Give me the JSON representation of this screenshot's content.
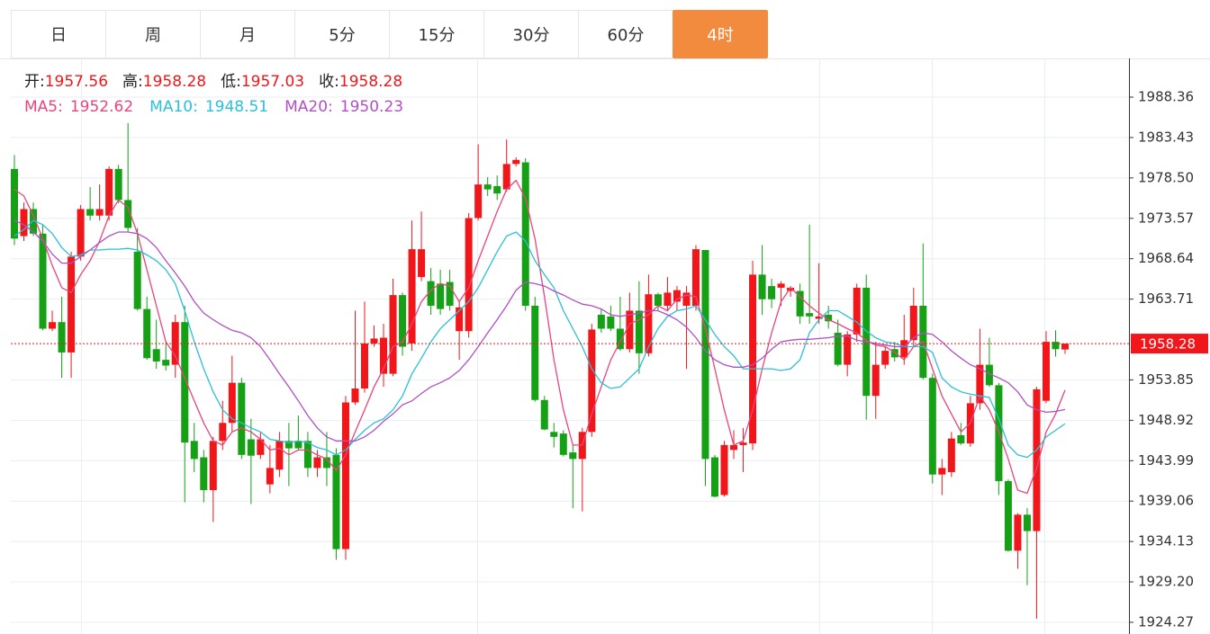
{
  "tabs": {
    "items": [
      "日",
      "周",
      "月",
      "5分",
      "15分",
      "30分",
      "60分",
      "4时"
    ],
    "active": 7
  },
  "chart_data": {
    "type": "candlestick",
    "ohlc_labels": [
      "开:",
      "高:",
      "低:",
      "收:"
    ],
    "up_color": "#f0161a",
    "down_color": "#15a015",
    "open": [
      1979.6,
      1971.4,
      1974.7,
      1971.7,
      1960.1,
      1960.9,
      1957.2,
      1968.9,
      1974.7,
      1973.9,
      1973.9,
      1979.6,
      1975.8,
      1969.5,
      1962.5,
      1957.6,
      1956.3,
      1955.7,
      1960.9,
      1946.4,
      1944.4,
      1940.4,
      1946.4,
      1948.6,
      1953.5,
      1946.6,
      1944.7,
      1941.1,
      1942.9,
      1946.4,
      1946.4,
      1946.4,
      1943.1,
      1944.4,
      1944.7,
      1933.2,
      1951.1,
      1952.8,
      1958.3,
      1954.6,
      1954.6,
      1964.2,
      1958.3,
      1966.4,
      1965.9,
      1965.6,
      1965.8,
      1959.8,
      1959.8,
      1973.6,
      1977.7,
      1977.5,
      1977.1,
      1980.2,
      1980.4,
      1962.9,
      1951.4,
      1947.5,
      1947.3,
      1945.0,
      1944.2,
      1947.5,
      1961.8,
      1961.6,
      1960.1,
      1957.6,
      1962.3,
      1957.1,
      1964.3,
      1962.9,
      1963.4,
      1962.9,
      1962.9,
      1969.7,
      1944.4,
      1939.8,
      1945.3,
      1945.9,
      1946.1,
      1966.7,
      1965.3,
      1965.1,
      1964.7,
      1964.7,
      1962.0,
      1961.3,
      1961.8,
      1959.6,
      1955.7,
      1959.4,
      1965.1,
      1951.9,
      1955.7,
      1957.6,
      1956.6,
      1958.7,
      1962.9,
      1954.1,
      1942.3,
      1942.6,
      1947.1,
      1946.1,
      1951.0,
      1955.7,
      1953.2,
      1941.5,
      1933.0,
      1937.4,
      1935.4,
      1951.3,
      1958.5,
      1957.56
    ],
    "high": [
      1981.3,
      1975.5,
      1975.5,
      1972.8,
      1962.3,
      1964.0,
      1969.5,
      1975.2,
      1977.4,
      1977.7,
      1979.9,
      1980.1,
      1985.2,
      1972.4,
      1964.0,
      1961.2,
      1958.5,
      1961.8,
      1962.9,
      1948.6,
      1945.3,
      1946.9,
      1951.3,
      1956.8,
      1954.1,
      1949.1,
      1947.5,
      1945.9,
      1947.5,
      1948.6,
      1949.5,
      1947.5,
      1945.3,
      1947.5,
      1945.5,
      1951.9,
      1962.3,
      1963.4,
      1960.5,
      1960.7,
      1966.2,
      1964.5,
      1973.3,
      1974.4,
      1967.5,
      1967.3,
      1967.3,
      1963.4,
      1974.2,
      1982.6,
      1978.6,
      1978.8,
      1983.2,
      1981.0,
      1980.9,
      1964.0,
      1951.9,
      1948.6,
      1947.7,
      1945.9,
      1948.0,
      1960.7,
      1962.5,
      1962.9,
      1964.0,
      1964.5,
      1965.9,
      1966.7,
      1964.5,
      1966.4,
      1965.3,
      1965.3,
      1970.3,
      1969.7,
      1944.7,
      1946.4,
      1947.7,
      1948.0,
      1968.4,
      1970.3,
      1966.2,
      1965.9,
      1965.3,
      1965.6,
      1972.8,
      1968.1,
      1962.9,
      1961.2,
      1959.8,
      1965.6,
      1966.7,
      1958.5,
      1957.9,
      1958.5,
      1961.8,
      1965.1,
      1970.5,
      1954.6,
      1944.2,
      1947.5,
      1948.6,
      1951.9,
      1960.1,
      1959.0,
      1953.5,
      1941.7,
      1937.6,
      1938.2,
      1953.0,
      1959.8,
      1959.9,
      1958.28
    ],
    "low": [
      1970.3,
      1970.8,
      1971.4,
      1959.9,
      1959.8,
      1954.1,
      1954.1,
      1968.4,
      1973.3,
      1973.3,
      1973.3,
      1975.4,
      1971.9,
      1962.3,
      1956.3,
      1955.2,
      1955.0,
      1954.1,
      1938.9,
      1942.6,
      1938.9,
      1936.5,
      1945.3,
      1947.5,
      1944.2,
      1938.7,
      1944.2,
      1940.0,
      1942.0,
      1940.9,
      1945.3,
      1942.0,
      1942.0,
      1940.9,
      1931.9,
      1931.9,
      1950.8,
      1952.3,
      1957.9,
      1953.0,
      1954.3,
      1956.8,
      1957.4,
      1965.9,
      1961.8,
      1961.8,
      1962.3,
      1956.3,
      1959.0,
      1973.3,
      1976.3,
      1975.8,
      1976.8,
      1979.9,
      1962.3,
      1951.2,
      1947.7,
      1945.6,
      1944.5,
      1938.2,
      1937.8,
      1946.9,
      1959.6,
      1959.8,
      1957.4,
      1957.2,
      1954.6,
      1956.7,
      1962.3,
      1962.3,
      1962.3,
      1955.2,
      1962.3,
      1940.9,
      1939.5,
      1939.6,
      1944.2,
      1942.6,
      1945.3,
      1961.8,
      1962.6,
      1962.9,
      1964.0,
      1960.7,
      1960.7,
      1960.7,
      1960.1,
      1955.5,
      1954.3,
      1958.5,
      1949.0,
      1949.1,
      1955.2,
      1956.1,
      1955.7,
      1957.9,
      1953.9,
      1941.2,
      1939.8,
      1942.0,
      1945.9,
      1945.7,
      1950.2,
      1953.0,
      1939.8,
      1932.9,
      1930.8,
      1928.8,
      1924.7,
      1951.0,
      1956.7,
      1957.03
    ],
    "close": [
      1971.1,
      1974.7,
      1971.7,
      1960.1,
      1960.9,
      1957.2,
      1968.9,
      1974.7,
      1973.9,
      1974.7,
      1979.6,
      1975.8,
      1972.4,
      1962.5,
      1956.5,
      1956.1,
      1955.6,
      1960.9,
      1946.2,
      1944.2,
      1940.4,
      1946.4,
      1948.6,
      1953.5,
      1944.7,
      1944.6,
      1946.6,
      1943.1,
      1946.4,
      1945.5,
      1945.5,
      1943.1,
      1944.4,
      1943.1,
      1933.2,
      1951.1,
      1952.8,
      1958.3,
      1958.9,
      1959.0,
      1964.2,
      1957.9,
      1969.8,
      1969.8,
      1962.9,
      1962.5,
      1962.9,
      1962.7,
      1973.6,
      1977.7,
      1977.1,
      1976.6,
      1980.2,
      1980.7,
      1962.9,
      1951.4,
      1947.8,
      1946.9,
      1944.7,
      1944.2,
      1947.5,
      1960.0,
      1960.1,
      1960.1,
      1957.6,
      1962.3,
      1957.1,
      1964.3,
      1962.9,
      1964.5,
      1964.8,
      1964.5,
      1969.8,
      1944.2,
      1939.6,
      1945.9,
      1945.9,
      1946.2,
      1966.7,
      1963.7,
      1963.7,
      1965.6,
      1965.1,
      1961.6,
      1961.6,
      1961.6,
      1961.0,
      1955.7,
      1959.4,
      1965.1,
      1951.9,
      1955.7,
      1957.4,
      1956.6,
      1958.7,
      1962.9,
      1954.1,
      1942.3,
      1943.1,
      1946.7,
      1946.1,
      1951.0,
      1955.7,
      1953.2,
      1941.5,
      1933.0,
      1937.4,
      1935.4,
      1952.7,
      1958.5,
      1957.6,
      1958.28
    ],
    "series": [
      {
        "name": "MA5:",
        "color": "#e8457c",
        "values": [
          1977.1,
          1976.3,
          1973.9,
          1971.1,
          1967.8,
          1965.1,
          1964.5,
          1966.7,
          1968.4,
          1970.8,
          1973.9,
          1975.8,
          1974.9,
          1971.7,
          1967.3,
          1962.9,
          1958.5,
          1956.8,
          1954.1,
          1951.3,
          1948.6,
          1946.4,
          1945.9,
          1947.5,
          1948.0,
          1947.5,
          1946.6,
          1945.3,
          1945.5,
          1944.7,
          1945.3,
          1945.3,
          1944.7,
          1944.2,
          1942.8,
          1944.7,
          1947.5,
          1950.2,
          1953.0,
          1955.2,
          1957.9,
          1958.5,
          1960.7,
          1963.4,
          1964.8,
          1965.6,
          1965.3,
          1963.4,
          1965.1,
          1968.4,
          1971.4,
          1974.4,
          1977.1,
          1978.2,
          1976.0,
          1971.1,
          1964.0,
          1956.3,
          1950.2,
          1945.9,
          1945.9,
          1949.7,
          1953.0,
          1956.3,
          1958.5,
          1960.7,
          1961.2,
          1961.8,
          1962.9,
          1962.3,
          1963.7,
          1964.2,
          1964.0,
          1960.1,
          1955.2,
          1950.2,
          1945.9,
          1946.4,
          1950.2,
          1955.2,
          1959.6,
          1963.4,
          1965.1,
          1964.0,
          1962.9,
          1962.0,
          1961.2,
          1960.7,
          1960.1,
          1959.6,
          1958.7,
          1958.1,
          1957.9,
          1957.2,
          1956.3,
          1957.9,
          1958.5,
          1955.2,
          1951.9,
          1949.7,
          1947.5,
          1948.6,
          1951.9,
          1950.2,
          1947.5,
          1944.2,
          1940.4,
          1940.0,
          1943.1,
          1947.5,
          1949.7,
          1952.62
        ]
      },
      {
        "name": "MA10:",
        "color": "#2bbfd8",
        "values": [
          1971.4,
          1972.2,
          1973.3,
          1972.8,
          1971.7,
          1970.0,
          1968.9,
          1969.1,
          1969.7,
          1969.7,
          1969.8,
          1969.8,
          1969.9,
          1969.7,
          1969.1,
          1968.4,
          1967.3,
          1965.6,
          1962.3,
          1958.5,
          1955.2,
          1952.4,
          1950.2,
          1949.1,
          1948.6,
          1948.0,
          1947.5,
          1946.6,
          1946.4,
          1946.2,
          1946.4,
          1946.2,
          1945.6,
          1945.3,
          1944.7,
          1945.3,
          1946.6,
          1947.7,
          1948.6,
          1949.1,
          1950.2,
          1951.9,
          1954.6,
          1956.5,
          1958.5,
          1960.1,
          1961.2,
          1962.3,
          1963.4,
          1965.1,
          1967.3,
          1969.5,
          1971.4,
          1971.9,
          1970.8,
          1968.4,
          1966.7,
          1965.1,
          1962.3,
          1960.1,
          1957.9,
          1955.2,
          1953.5,
          1952.8,
          1953.0,
          1954.1,
          1955.2,
          1957.9,
          1960.1,
          1961.6,
          1962.3,
          1962.5,
          1962.9,
          1961.2,
          1959.4,
          1957.9,
          1956.8,
          1955.2,
          1955.2,
          1955.2,
          1955.2,
          1955.0,
          1955.2,
          1956.3,
          1959.6,
          1961.2,
          1962.3,
          1962.3,
          1961.6,
          1960.9,
          1959.8,
          1959.0,
          1958.5,
          1958.3,
          1957.9,
          1957.9,
          1957.9,
          1957.2,
          1954.1,
          1953.0,
          1952.4,
          1952.1,
          1951.9,
          1951.7,
          1949.1,
          1945.9,
          1944.7,
          1944.4,
          1945.3,
          1946.9,
          1947.7,
          1948.51
        ]
      },
      {
        "name": "MA20:",
        "color": "#b14fc5",
        "values": [
          1973.3,
          1972.8,
          1971.9,
          1970.8,
          1969.2,
          1968.1,
          1968.1,
          1968.9,
          1969.7,
          1970.6,
          1971.4,
          1971.9,
          1971.9,
          1971.7,
          1971.1,
          1970.0,
          1968.4,
          1966.9,
          1965.3,
          1963.4,
          1962.0,
          1961.2,
          1960.5,
          1959.9,
          1959.6,
          1959.0,
          1957.9,
          1956.3,
          1954.6,
          1953.0,
          1951.3,
          1949.5,
          1948.0,
          1946.9,
          1946.4,
          1946.4,
          1946.4,
          1946.9,
          1947.7,
          1948.8,
          1949.7,
          1950.8,
          1951.3,
          1952.2,
          1953.0,
          1953.5,
          1954.1,
          1955.0,
          1956.3,
          1957.9,
          1959.6,
          1961.2,
          1962.9,
          1964.8,
          1965.8,
          1965.6,
          1965.3,
          1964.7,
          1964.2,
          1963.6,
          1963.1,
          1962.9,
          1962.5,
          1961.8,
          1961.6,
          1961.8,
          1962.0,
          1962.3,
          1962.3,
          1961.8,
          1961.2,
          1960.3,
          1959.0,
          1957.4,
          1956.3,
          1955.7,
          1955.4,
          1955.4,
          1955.7,
          1956.5,
          1957.6,
          1958.5,
          1958.7,
          1958.8,
          1958.8,
          1958.9,
          1959.0,
          1959.2,
          1959.2,
          1958.7,
          1958.5,
          1958.3,
          1958.1,
          1957.9,
          1957.9,
          1959.0,
          1959.6,
          1959.4,
          1958.5,
          1957.4,
          1956.5,
          1955.7,
          1955.2,
          1954.6,
          1954.1,
          1953.5,
          1952.4,
          1950.8,
          1950.2,
          1949.9,
          1950.0,
          1950.23
        ]
      }
    ],
    "ylim": [
      1922.84,
      1993.08
    ],
    "yticks": [
      1988.36,
      1983.43,
      {
        "value": 1978.5,
        "label": "1978.50"
      },
      1973.57,
      1968.64,
      1963.71,
      1953.85,
      1948.92,
      1943.99,
      1939.06,
      1934.13,
      {
        "value": 1929.2,
        "label": "1929.20"
      },
      1924.27
    ],
    "grid": true
  }
}
